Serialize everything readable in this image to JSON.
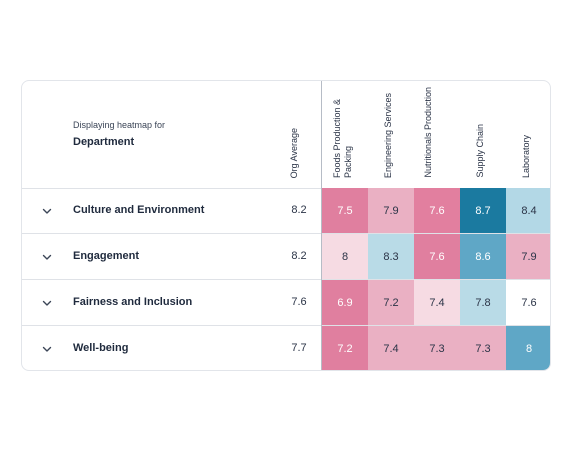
{
  "header": {
    "subtitle": "Displaying heatmap for",
    "group": "Department",
    "org_average_label": "Org Average",
    "columns": [
      {
        "label": "Foods Production & Packing"
      },
      {
        "label": "Engineering Services"
      },
      {
        "label": "Nutritionals Production"
      },
      {
        "label": "Supply Chain"
      },
      {
        "label": "Laboratory"
      }
    ]
  },
  "rows": [
    {
      "label": "Culture and Environment",
      "avg": "8.2",
      "cells": [
        {
          "v": "7.5",
          "color": "#e07f9f",
          "text": "#ffffff"
        },
        {
          "v": "7.9",
          "color": "#eab0c3",
          "text": "#2b3447"
        },
        {
          "v": "7.6",
          "color": "#e27f9f",
          "text": "#ffffff"
        },
        {
          "v": "8.7",
          "color": "#1b7aa0",
          "text": "#ffffff"
        },
        {
          "v": "8.4",
          "color": "#b3d8e6",
          "text": "#2b3447"
        }
      ]
    },
    {
      "label": "Engagement",
      "avg": "8.2",
      "cells": [
        {
          "v": "8",
          "color": "#f6dbe3",
          "text": "#2b3447"
        },
        {
          "v": "8.3",
          "color": "#b9dbe7",
          "text": "#2b3447"
        },
        {
          "v": "7.6",
          "color": "#e07f9f",
          "text": "#ffffff"
        },
        {
          "v": "8.6",
          "color": "#5fa7c6",
          "text": "#ffffff"
        },
        {
          "v": "7.9",
          "color": "#eab0c3",
          "text": "#2b3447"
        }
      ]
    },
    {
      "label": "Fairness and Inclusion",
      "avg": "7.6",
      "cells": [
        {
          "v": "6.9",
          "color": "#e07f9f",
          "text": "#ffffff"
        },
        {
          "v": "7.2",
          "color": "#eab0c3",
          "text": "#2b3447"
        },
        {
          "v": "7.4",
          "color": "#f6dbe3",
          "text": "#2b3447"
        },
        {
          "v": "7.8",
          "color": "#b9dbe7",
          "text": "#2b3447"
        },
        {
          "v": "7.6",
          "color": "#ffffff",
          "text": "#2b3447"
        }
      ]
    },
    {
      "label": "Well-being",
      "avg": "7.7",
      "cells": [
        {
          "v": "7.2",
          "color": "#e07f9f",
          "text": "#ffffff"
        },
        {
          "v": "7.4",
          "color": "#eab0c3",
          "text": "#2b3447"
        },
        {
          "v": "7.3",
          "color": "#eab0c3",
          "text": "#2b3447"
        },
        {
          "v": "7.3",
          "color": "#eab0c3",
          "text": "#2b3447"
        },
        {
          "v": "8",
          "color": "#5fa7c6",
          "text": "#ffffff"
        }
      ]
    }
  ],
  "icons": {
    "row_toggle": "chevron-down-icon"
  }
}
